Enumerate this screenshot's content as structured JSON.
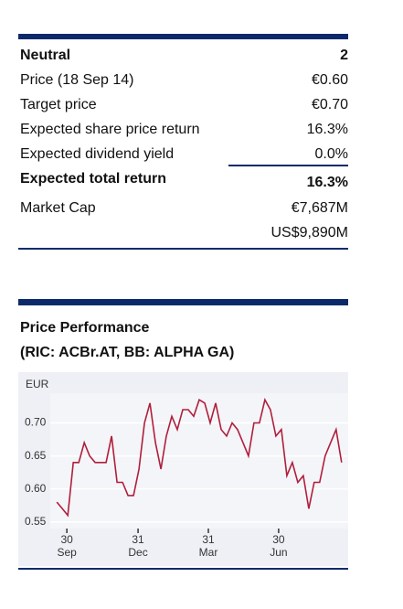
{
  "table": {
    "rows": [
      [
        "Neutral",
        "2"
      ],
      [
        "Price (18 Sep 14)",
        "€0.60"
      ],
      [
        "Target price",
        "€0.70"
      ],
      [
        "Expected share price return",
        "16.3%"
      ],
      [
        "Expected dividend yield",
        "0.0%"
      ],
      [
        "Expected total return",
        "16.3%"
      ],
      [
        "Market Cap",
        "€7,687M"
      ],
      [
        "US$9,890M"
      ]
    ]
  },
  "chart_data": {
    "type": "line",
    "title": "Price Performance",
    "subtitle": "(RIC:  ACBr.AT, BB:  ALPHA GA)",
    "y_label": "EUR",
    "series": [
      {
        "color": "#b01e3c",
        "values": [
          0.58,
          0.57,
          0.56,
          0.64,
          0.64,
          0.67,
          0.65,
          0.64,
          0.64,
          0.64,
          0.68,
          0.61,
          0.61,
          0.59,
          0.59,
          0.63,
          0.7,
          0.73,
          0.67,
          0.63,
          0.68,
          0.71,
          0.69,
          0.72,
          0.72,
          0.71,
          0.735,
          0.73,
          0.7,
          0.73,
          0.69,
          0.68,
          0.7,
          0.69,
          0.67,
          0.65,
          0.7,
          0.7,
          0.735,
          0.72,
          0.68,
          0.69,
          0.62,
          0.64,
          0.61,
          0.62,
          0.57,
          0.61,
          0.61,
          0.65,
          0.67,
          0.69,
          0.64
        ]
      }
    ],
    "xlim": [
      -1.2,
      53.2
    ],
    "xticks": [
      {
        "value": 1.83,
        "label": [
          "30",
          "Sep"
        ]
      },
      {
        "value": 14.83,
        "label": [
          "31",
          "Dec"
        ]
      },
      {
        "value": 27.67,
        "label": [
          "31",
          "Mar"
        ]
      },
      {
        "value": 40.5,
        "label": [
          "30",
          "Jun"
        ]
      }
    ],
    "ylim": [
      0.54,
      0.745
    ],
    "yticks": [
      {
        "value": 0.55,
        "label": "0.55"
      },
      {
        "value": 0.6,
        "label": "0.60"
      },
      {
        "value": 0.65,
        "label": "0.65"
      },
      {
        "value": 0.7,
        "label": "0.70"
      }
    ],
    "grid": true
  }
}
